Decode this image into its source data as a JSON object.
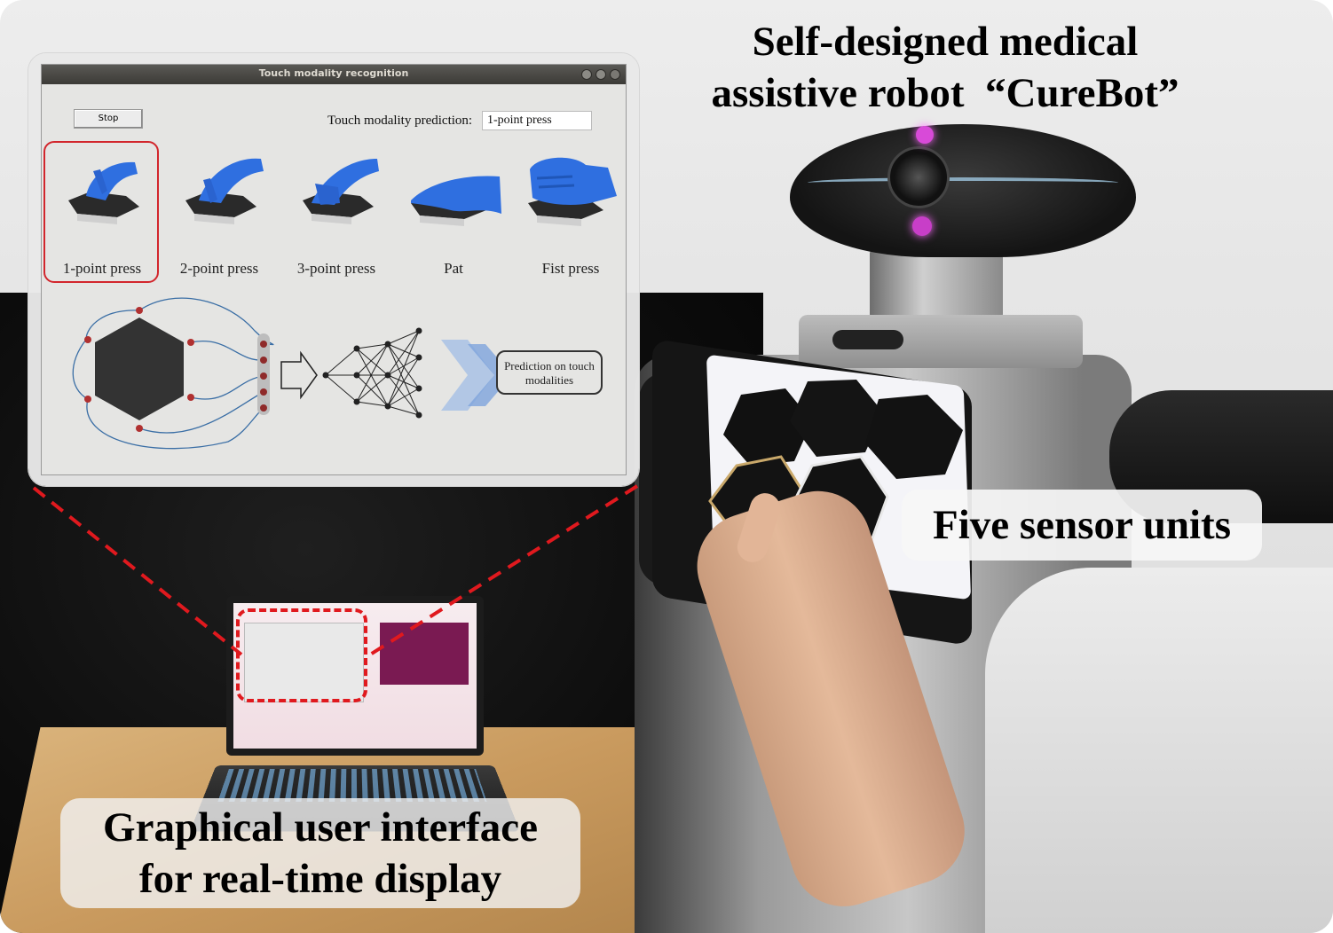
{
  "figure": {
    "title_lines": [
      "Self-designed medical",
      "assistive robot  “CureBot”"
    ],
    "sensor_callout": "Five sensor units",
    "gui_callout_lines": [
      "Graphical user interface",
      "for real-time display"
    ]
  },
  "gui": {
    "window_title": "Touch modality recognition",
    "stop_label": "Stop",
    "prediction_label": "Touch modality prediction:",
    "prediction_value": "1-point press",
    "modalities": [
      {
        "label": "1-point press",
        "icon": "one-finger-press-icon",
        "selected": true
      },
      {
        "label": "2-point press",
        "icon": "two-finger-press-icon",
        "selected": false
      },
      {
        "label": "3-point press",
        "icon": "three-finger-press-icon",
        "selected": false
      },
      {
        "label": "Pat",
        "icon": "palm-pat-icon",
        "selected": false
      },
      {
        "label": "Fist press",
        "icon": "fist-press-icon",
        "selected": false
      }
    ],
    "diagram": {
      "sensor_icon": "hexagon-sensor-icon",
      "network_icon": "neural-network-icon",
      "prediction_box": "Prediction on touch modalities"
    }
  },
  "colors": {
    "highlight": "#d2262c",
    "glove": "#2f6fe0",
    "led": "#d84ad8",
    "arrow": "#9dbbe6"
  }
}
